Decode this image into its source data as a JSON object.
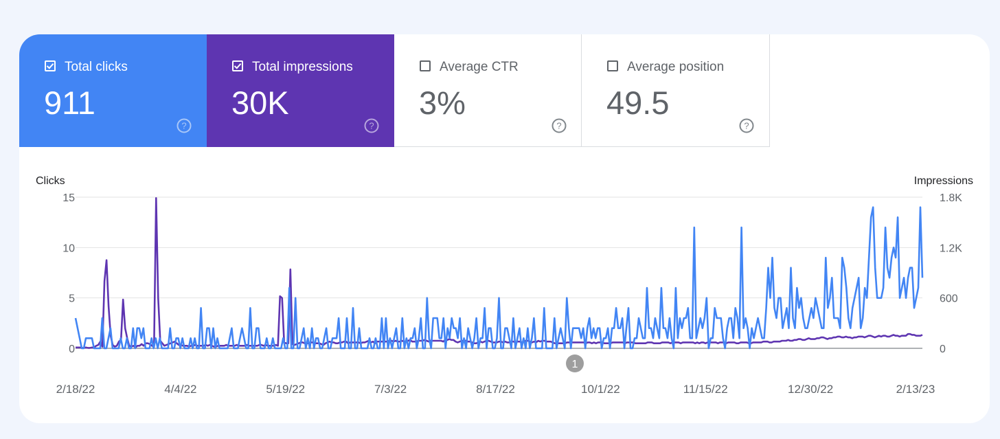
{
  "tiles": {
    "clicks": {
      "label": "Total clicks",
      "value": "911",
      "checked": true,
      "color": "#4285f4"
    },
    "impressions": {
      "label": "Total impressions",
      "value": "30K",
      "checked": true,
      "color": "#5e35b1"
    },
    "ctr": {
      "label": "Average CTR",
      "value": "3%",
      "checked": false
    },
    "position": {
      "label": "Average position",
      "value": "49.5",
      "checked": false
    }
  },
  "icons": {
    "help": "help-circle-icon",
    "checkbox": "checkbox-icon"
  },
  "annotation": {
    "label": "1",
    "date": "9/27/22"
  },
  "chart_data": {
    "type": "line",
    "x_start": "2/18/22",
    "x_end": "2/13/23",
    "x_tick_labels": [
      "2/18/22",
      "4/4/22",
      "5/19/22",
      "7/3/22",
      "8/17/22",
      "10/1/22",
      "11/15/22",
      "12/30/22",
      "2/13/23"
    ],
    "y_left": {
      "label": "Clicks",
      "ticks": [
        "0",
        "5",
        "10",
        "15"
      ],
      "range": [
        0,
        15
      ]
    },
    "y_right": {
      "label": "Impressions",
      "ticks": [
        "0",
        "600",
        "1.2K",
        "1.8K"
      ],
      "range": [
        0,
        1800
      ]
    },
    "grid": true,
    "series": [
      {
        "name": "Total clicks",
        "axis": "left",
        "color": "#4285f4",
        "values": [
          3,
          2,
          1,
          0,
          0,
          1,
          1,
          1,
          1,
          0,
          0,
          0,
          0,
          3,
          0,
          0,
          1,
          2,
          0,
          0,
          0,
          0,
          1,
          0,
          0,
          1,
          0,
          0,
          2,
          0,
          2,
          2,
          1,
          2,
          0,
          0,
          0,
          1,
          0,
          1,
          0,
          1,
          0,
          0,
          0,
          0,
          2,
          0,
          0,
          1,
          1,
          0,
          1,
          0,
          0,
          0,
          1,
          0,
          1,
          0,
          0,
          4,
          0,
          0,
          2,
          2,
          0,
          2,
          0,
          1,
          0,
          0,
          0,
          0,
          0,
          1,
          2,
          0,
          0,
          0,
          1,
          2,
          1,
          0,
          0,
          4,
          0,
          0,
          2,
          2,
          0,
          0,
          0,
          1,
          0,
          0,
          1,
          0,
          0,
          0,
          0,
          1,
          0,
          0,
          6,
          0,
          0,
          5,
          0,
          0,
          1,
          2,
          0,
          1,
          0,
          2,
          0,
          1,
          1,
          0,
          0,
          1,
          2,
          0,
          0,
          1,
          1,
          1,
          3,
          0,
          0,
          0,
          3,
          0,
          0,
          4,
          0,
          0,
          2,
          0,
          0,
          0,
          0,
          1,
          0,
          0,
          1,
          0,
          0,
          3,
          0,
          3,
          0,
          1,
          0,
          1,
          2,
          0,
          0,
          3,
          0,
          1,
          0,
          1,
          1,
          2,
          0,
          1,
          3,
          0,
          0,
          5,
          1,
          0,
          3,
          3,
          3,
          1,
          1,
          3,
          0,
          2,
          1,
          3,
          2,
          2,
          1,
          3,
          0,
          1,
          0,
          2,
          1,
          0,
          1,
          3,
          0,
          1,
          1,
          4,
          0,
          2,
          2,
          0,
          0,
          1,
          5,
          0,
          0,
          2,
          2,
          1,
          0,
          3,
          0,
          1,
          2,
          0,
          1,
          0,
          2,
          0,
          1,
          3,
          0,
          0,
          0,
          0,
          4,
          0,
          0,
          0,
          0,
          3,
          0,
          1,
          2,
          1,
          0,
          5,
          2,
          0,
          2,
          2,
          2,
          2,
          1,
          2,
          0,
          2,
          3,
          1,
          2,
          1,
          2,
          2,
          0,
          1,
          1,
          2,
          0,
          2,
          2,
          4,
          2,
          2,
          3,
          0,
          2,
          4,
          0,
          0,
          1,
          1,
          3,
          2,
          1,
          1,
          6,
          2,
          2,
          1,
          3,
          2,
          1,
          6,
          2,
          2,
          1,
          3,
          1,
          0,
          6,
          1,
          3,
          2,
          3,
          3,
          4,
          1,
          1,
          12,
          1,
          2,
          3,
          2,
          3,
          5,
          0,
          1,
          1,
          4,
          3,
          3,
          3,
          1,
          0,
          2,
          3,
          3,
          1,
          4,
          3,
          1,
          12,
          2,
          3,
          2,
          0,
          2,
          1,
          2,
          3,
          2,
          1,
          1,
          4,
          8,
          5,
          9,
          4,
          3,
          5,
          5,
          2,
          3,
          4,
          2,
          8,
          3,
          2,
          6,
          4,
          5,
          3,
          2,
          2,
          3,
          4,
          3,
          5,
          4,
          3,
          2,
          2,
          9,
          4,
          5,
          7,
          3,
          3,
          3,
          2,
          9,
          8,
          6,
          3,
          2,
          4,
          5,
          6,
          7,
          2,
          3,
          6,
          5,
          9,
          13,
          14,
          8,
          5,
          5,
          5,
          6,
          12,
          8,
          7,
          9,
          10,
          9,
          13,
          5,
          6,
          7,
          5,
          7,
          8,
          8,
          4,
          5,
          6,
          14,
          7
        ]
      },
      {
        "name": "Total impressions",
        "axis": "right",
        "color": "#5e35b1",
        "values": [
          10,
          10,
          10,
          5,
          5,
          10,
          5,
          5,
          10,
          10,
          30,
          40,
          80,
          20,
          800,
          1050,
          500,
          150,
          40,
          20,
          30,
          80,
          100,
          580,
          240,
          120,
          30,
          20,
          30,
          10,
          30,
          30,
          50,
          30,
          60,
          60,
          50,
          30,
          20,
          1789,
          600,
          90,
          60,
          30,
          40,
          50,
          60,
          70,
          80,
          60,
          40,
          40,
          30,
          30,
          30,
          20,
          30,
          30,
          40,
          30,
          30,
          30,
          30,
          40,
          30,
          40,
          30,
          20,
          20,
          30,
          30,
          30,
          30,
          40,
          30,
          30,
          30,
          30,
          40,
          30,
          30,
          30,
          30,
          40,
          30,
          30,
          30,
          30,
          30,
          40,
          40,
          30,
          40,
          30,
          30,
          30,
          30,
          40,
          30,
          620,
          600,
          70,
          60,
          60,
          940,
          50,
          40,
          50,
          60,
          70,
          70,
          60,
          60,
          60,
          70,
          70,
          60,
          60,
          60,
          50,
          40,
          60,
          70,
          80,
          70,
          70,
          60,
          60,
          70,
          70,
          80,
          80,
          60,
          70,
          70,
          70,
          70,
          70,
          60,
          70,
          70,
          80,
          90,
          70,
          80,
          60,
          80,
          80,
          80,
          80,
          80,
          80,
          90,
          90,
          80,
          90,
          80,
          80,
          90,
          80,
          80,
          90,
          100,
          80,
          80,
          80,
          90,
          90,
          90,
          100,
          90,
          80,
          90,
          90,
          90,
          90,
          90,
          90,
          80,
          100,
          100,
          110,
          100,
          100,
          80,
          70,
          80,
          90,
          90,
          90,
          80,
          80,
          70,
          60,
          60,
          70,
          80,
          70,
          80,
          90,
          90,
          80,
          70,
          70,
          70,
          80,
          80,
          70,
          80,
          70,
          70,
          80,
          80,
          70,
          80,
          80,
          70,
          80,
          90,
          90,
          80,
          70,
          80,
          70,
          90,
          80,
          90,
          90,
          80,
          80,
          80,
          70,
          60,
          60,
          60,
          60,
          60,
          60,
          70,
          70,
          70,
          70,
          70,
          70,
          70,
          70,
          70,
          60,
          70,
          70,
          60,
          70,
          60,
          70,
          70,
          70,
          60,
          60,
          60,
          60,
          70,
          70,
          70,
          70,
          70,
          70,
          60,
          70,
          70,
          70,
          70,
          60,
          60,
          60,
          60,
          60,
          60,
          70,
          70,
          70,
          60,
          60,
          60,
          60,
          70,
          70,
          70,
          70,
          60,
          70,
          70,
          70,
          70,
          60,
          70,
          70,
          70,
          70,
          70,
          70,
          60,
          70,
          60,
          70,
          70,
          60,
          70,
          70,
          70,
          70,
          70,
          60,
          70,
          70,
          70,
          60,
          70,
          70,
          70,
          70,
          60,
          60,
          70,
          70,
          70,
          70,
          60,
          60,
          70,
          70,
          70,
          70,
          70,
          80,
          80,
          80,
          70,
          70,
          80,
          80,
          80,
          80,
          90,
          90,
          90,
          100,
          90,
          90,
          100,
          100,
          110,
          110,
          100,
          100,
          110,
          120,
          110,
          110,
          110,
          120,
          120,
          130,
          130,
          120,
          110,
          120,
          120,
          130,
          130,
          140,
          140,
          130,
          130,
          140,
          130,
          130,
          120,
          130,
          130,
          140,
          140,
          140,
          130,
          140,
          150,
          150,
          140,
          130,
          140,
          150,
          140,
          150,
          150,
          140,
          140,
          150,
          160,
          150,
          150,
          140,
          150,
          150,
          150,
          170,
          170,
          160,
          160,
          150,
          150,
          150,
          160
        ]
      }
    ]
  }
}
